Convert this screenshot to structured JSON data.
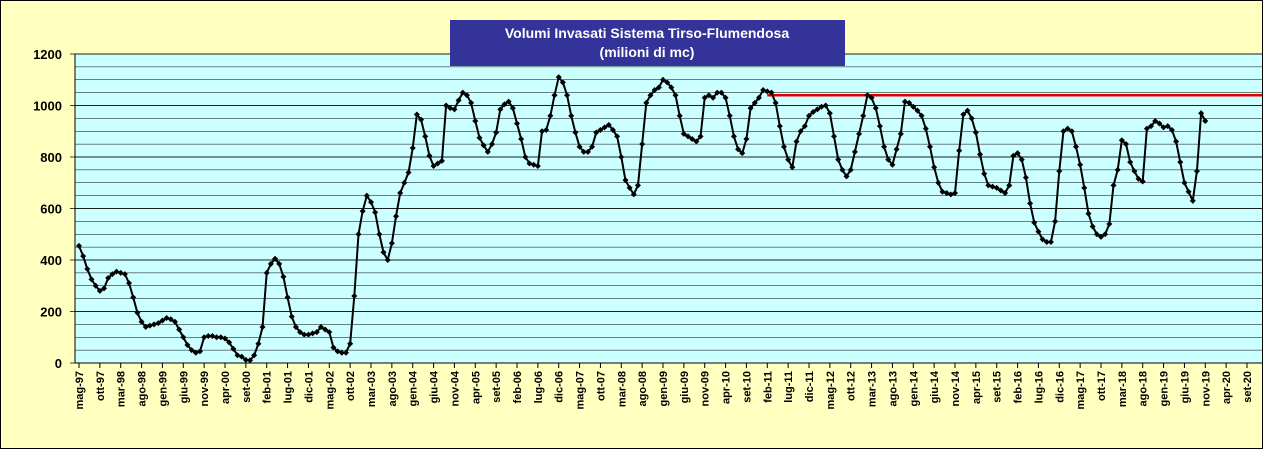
{
  "chart_data": {
    "type": "line",
    "title": "Volumi Invasati Sistema Tirso-Flumendosa",
    "subtitle": "(milioni di mc)",
    "categories": [
      "mag-97",
      null,
      null,
      null,
      null,
      "ott-97",
      null,
      null,
      null,
      null,
      "mar-98",
      null,
      null,
      null,
      null,
      "ago-98",
      null,
      null,
      null,
      null,
      "gen-99",
      null,
      null,
      null,
      null,
      "giu-99",
      null,
      null,
      null,
      null,
      "nov-99",
      null,
      null,
      null,
      null,
      "apr-00",
      null,
      null,
      null,
      null,
      "set-00",
      null,
      null,
      null,
      null,
      "feb-01",
      null,
      null,
      null,
      null,
      "lug-01",
      null,
      null,
      null,
      null,
      "dic-01",
      null,
      null,
      null,
      null,
      "mag-02",
      null,
      null,
      null,
      null,
      "ott-02",
      null,
      null,
      null,
      null,
      "mar-03",
      null,
      null,
      null,
      null,
      "ago-03",
      null,
      null,
      null,
      null,
      "gen-04",
      null,
      null,
      null,
      null,
      "giu-04",
      null,
      null,
      null,
      null,
      "nov-04",
      null,
      null,
      null,
      null,
      "apr-05",
      null,
      null,
      null,
      null,
      "set-05",
      null,
      null,
      null,
      null,
      "feb-06",
      null,
      null,
      null,
      null,
      "lug-06",
      null,
      null,
      null,
      null,
      "dic-06",
      null,
      null,
      null,
      null,
      "mag-07",
      null,
      null,
      null,
      null,
      "ott-07",
      null,
      null,
      null,
      null,
      "mar-08",
      null,
      null,
      null,
      null,
      "ago-08",
      null,
      null,
      null,
      null,
      "gen-09",
      null,
      null,
      null,
      null,
      "giu-09",
      null,
      null,
      null,
      null,
      "nov-09",
      null,
      null,
      null,
      null,
      "apr-10",
      null,
      null,
      null,
      null,
      "set-10",
      null,
      null,
      null,
      null,
      "feb-11",
      null,
      null,
      null,
      null,
      "lug-11",
      null,
      null,
      null,
      null,
      "dic-11",
      null,
      null,
      null,
      null,
      "mag-12",
      null,
      null,
      null,
      null,
      "ott-12",
      null,
      null,
      null,
      null,
      "mar-13",
      null,
      null,
      null,
      null,
      "ago-13",
      null,
      null,
      null,
      null,
      "gen-14",
      null,
      null,
      null,
      null,
      "giu-14",
      null,
      null,
      null,
      null,
      "nov-14",
      null,
      null,
      null,
      null,
      "apr-15",
      null,
      null,
      null,
      null,
      "set-15",
      null,
      null,
      null,
      null,
      "feb-16",
      null,
      null,
      null,
      null,
      "lug-16",
      null,
      null,
      null,
      null,
      "dic-16",
      null,
      null,
      null,
      null,
      "mag-17",
      null,
      null,
      null,
      null,
      "ott-17",
      null,
      null,
      null,
      null,
      "mar-18",
      null,
      null,
      null,
      null,
      "ago-18",
      null,
      null,
      null,
      null,
      "gen-19",
      null,
      null,
      null,
      null,
      "giu-19",
      null,
      null,
      null,
      null,
      "nov-19",
      null,
      null,
      null,
      null,
      "apr-20",
      null,
      null,
      null,
      null,
      "set-20"
    ],
    "values": [
      455,
      415,
      365,
      325,
      300,
      280,
      290,
      330,
      345,
      355,
      350,
      345,
      310,
      255,
      195,
      160,
      140,
      145,
      150,
      155,
      165,
      175,
      170,
      160,
      130,
      100,
      70,
      50,
      40,
      45,
      100,
      105,
      105,
      100,
      100,
      95,
      80,
      55,
      30,
      25,
      12,
      10,
      30,
      75,
      140,
      350,
      385,
      405,
      385,
      335,
      255,
      180,
      140,
      120,
      110,
      110,
      115,
      120,
      140,
      130,
      120,
      60,
      45,
      40,
      40,
      75,
      260,
      500,
      590,
      650,
      625,
      585,
      500,
      430,
      400,
      465,
      570,
      660,
      700,
      740,
      835,
      965,
      945,
      880,
      805,
      765,
      775,
      785,
      1000,
      990,
      985,
      1020,
      1050,
      1040,
      1010,
      940,
      875,
      845,
      820,
      850,
      895,
      985,
      1005,
      1015,
      990,
      930,
      870,
      800,
      775,
      770,
      765,
      900,
      905,
      960,
      1040,
      1110,
      1090,
      1040,
      960,
      895,
      840,
      820,
      820,
      840,
      895,
      905,
      915,
      925,
      905,
      880,
      800,
      710,
      680,
      655,
      690,
      850,
      1010,
      1040,
      1060,
      1070,
      1100,
      1090,
      1070,
      1040,
      960,
      890,
      880,
      870,
      860,
      880,
      1030,
      1040,
      1030,
      1050,
      1050,
      1030,
      960,
      880,
      830,
      815,
      870,
      990,
      1010,
      1030,
      1060,
      1055,
      1050,
      1010,
      920,
      840,
      790,
      760,
      860,
      900,
      920,
      960,
      975,
      985,
      995,
      1000,
      970,
      880,
      790,
      750,
      725,
      750,
      820,
      890,
      960,
      1040,
      1030,
      990,
      920,
      840,
      790,
      770,
      830,
      890,
      1015,
      1010,
      995,
      980,
      960,
      910,
      840,
      760,
      700,
      665,
      660,
      655,
      660,
      825,
      965,
      980,
      950,
      895,
      810,
      735,
      690,
      685,
      680,
      670,
      660,
      690,
      805,
      815,
      790,
      720,
      620,
      545,
      510,
      480,
      470,
      470,
      550,
      745,
      900,
      910,
      900,
      840,
      770,
      680,
      580,
      530,
      500,
      490,
      500,
      540,
      690,
      750,
      865,
      850,
      780,
      745,
      715,
      705,
      910,
      920,
      940,
      930,
      915,
      920,
      905,
      860,
      780,
      700,
      665,
      630,
      745,
      970,
      940,
      null,
      null,
      null,
      null,
      null,
      null,
      null,
      null,
      null,
      null
    ],
    "color": "#000000",
    "ylim": [
      0,
      1200
    ],
    "yticks": [
      0,
      200,
      400,
      600,
      800,
      1000,
      1200
    ],
    "grid": true,
    "grid_step": 50,
    "reference_line": {
      "value": 1040,
      "color": "#e00000",
      "from": "feb-11"
    }
  }
}
